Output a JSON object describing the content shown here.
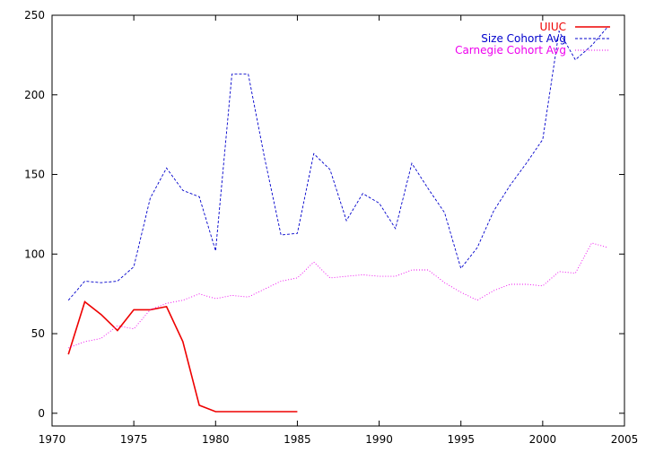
{
  "chart_data": {
    "type": "line",
    "title": "",
    "xlabel": "",
    "ylabel": "",
    "xlim": [
      1970,
      2005
    ],
    "ylim": [
      -8,
      250
    ],
    "xticks": [
      1970,
      1975,
      1980,
      1985,
      1990,
      1995,
      2000,
      2005
    ],
    "yticks": [
      0,
      50,
      100,
      150,
      200,
      250
    ],
    "grid": false,
    "legend": "top-right",
    "series": [
      {
        "name": "UIUC",
        "color": "#ee0000",
        "style": "solid",
        "x": [
          1971,
          1972,
          1973,
          1974,
          1975,
          1976,
          1977,
          1978,
          1979,
          1980,
          1981,
          1982,
          1983,
          1984,
          1985
        ],
        "values": [
          37,
          70,
          62,
          52,
          65,
          65,
          67,
          45,
          5,
          1,
          1,
          1,
          1,
          1,
          1
        ]
      },
      {
        "name": "Size Cohort Avg",
        "color": "#0000cc",
        "style": "dashed",
        "x": [
          1971,
          1972,
          1973,
          1974,
          1975,
          1976,
          1977,
          1978,
          1979,
          1980,
          1981,
          1982,
          1983,
          1984,
          1985,
          1986,
          1987,
          1988,
          1989,
          1990,
          1991,
          1992,
          1993,
          1994,
          1995,
          1996,
          1997,
          1998,
          1999,
          2000,
          2001,
          2002,
          2003,
          2004
        ],
        "values": [
          71,
          83,
          82,
          83,
          92,
          135,
          154,
          140,
          136,
          102,
          213,
          213,
          160,
          112,
          113,
          163,
          153,
          121,
          138,
          132,
          116,
          157,
          141,
          126,
          91,
          104,
          127,
          143,
          157,
          172,
          240,
          222,
          231,
          243
        ]
      },
      {
        "name": "Carnegie Cohort Avg",
        "color": "#ee00ee",
        "style": "dotted",
        "x": [
          1971,
          1972,
          1973,
          1974,
          1975,
          1976,
          1977,
          1978,
          1979,
          1980,
          1981,
          1982,
          1983,
          1984,
          1985,
          1986,
          1987,
          1988,
          1989,
          1990,
          1991,
          1992,
          1993,
          1994,
          1995,
          1996,
          1997,
          1998,
          1999,
          2000,
          2001,
          2002,
          2003,
          2004
        ],
        "values": [
          41,
          45,
          47,
          55,
          53,
          65,
          69,
          71,
          75,
          72,
          74,
          73,
          78,
          83,
          85,
          95,
          85,
          86,
          87,
          86,
          86,
          90,
          90,
          82,
          76,
          71,
          77,
          81,
          81,
          80,
          89,
          88,
          107,
          104
        ]
      }
    ]
  }
}
